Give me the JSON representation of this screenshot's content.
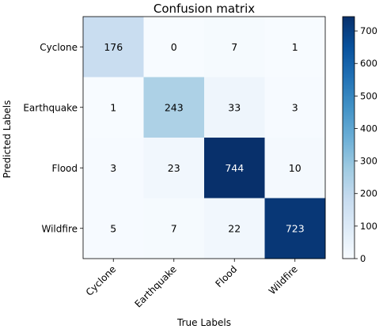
{
  "chart_data": {
    "type": "heatmap",
    "title": "Confusion matrix",
    "xlabel": "True Labels",
    "ylabel": "Predicted Labels",
    "x_categories": [
      "Cyclone",
      "Earthquake",
      "Flood",
      "Wildfire"
    ],
    "y_categories": [
      "Cyclone",
      "Earthquake",
      "Flood",
      "Wildfire"
    ],
    "matrix": [
      [
        176,
        0,
        7,
        1
      ],
      [
        1,
        243,
        33,
        3
      ],
      [
        3,
        23,
        744,
        10
      ],
      [
        5,
        7,
        22,
        723
      ]
    ],
    "colormap": "Blues",
    "color_range": [
      0,
      744
    ],
    "colorbar_ticks": [
      0,
      100,
      200,
      300,
      400,
      500,
      600,
      700
    ],
    "colorbar_tick_labels": [
      "0",
      "100",
      "200",
      "300",
      "400",
      "500",
      "600",
      "700"
    ],
    "grid": false
  }
}
